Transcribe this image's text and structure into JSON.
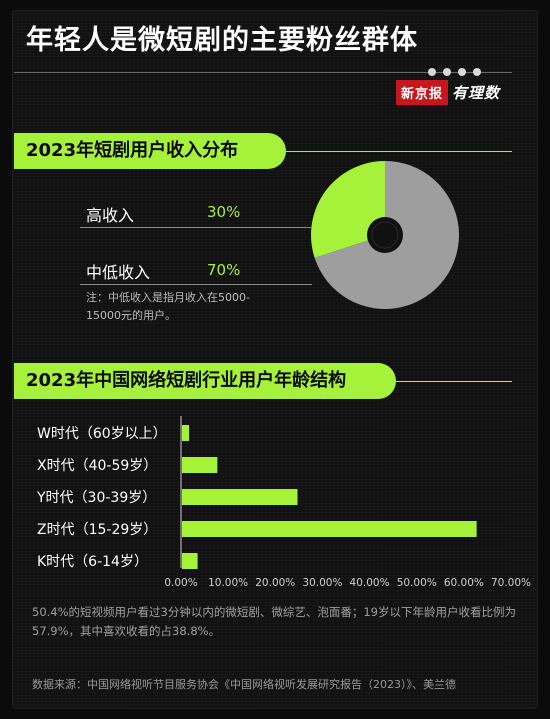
{
  "title": "年轻人是微短剧的主要粉丝群体",
  "brand": {
    "name": "新京报",
    "sub": "有理数"
  },
  "section1": {
    "title": "2023年短剧用户收入分布"
  },
  "section2": {
    "title": "2023年中国网络短剧行业用户年龄结构"
  },
  "note": "注：中低收入是指月收入在5000-15000元的用户。",
  "footnote": "50.4%的短视频用户看过3分钟以内的微短剧、微综艺、泡面番；19岁以下年龄用户收看比例为57.9%，其中喜欢收看的占38.8%。",
  "source": "数据来源：中国网络视听节目服务协会《中国网络视听发展研究报告（2023）》、美兰德",
  "colors": {
    "accent": "#a6f23a",
    "grey": "#9e9e9e"
  },
  "chart_data": [
    {
      "type": "pie",
      "title": "2023年短剧用户收入分布",
      "slices": [
        {
          "label": "高收入",
          "value": 30,
          "display": "30%",
          "color": "#a6f23a"
        },
        {
          "label": "中低收入",
          "value": 70,
          "display": "70%",
          "color": "#9e9e9e"
        }
      ],
      "donut": true
    },
    {
      "type": "bar",
      "orientation": "horizontal",
      "title": "2023年中国网络短剧行业用户年龄结构",
      "categories": [
        "W时代（60岁以上）",
        "X时代（40-59岁）",
        "Y时代（30-39岁）",
        "Z时代（15-29岁）",
        "K时代（6-14岁）"
      ],
      "values": [
        1.5,
        7.5,
        24.5,
        62.5,
        3.3
      ],
      "xlim": [
        0,
        70
      ],
      "xticks": [
        "0.00%",
        "10.00%",
        "20.00%",
        "30.00%",
        "40.00%",
        "50.00%",
        "60.00%",
        "70.00%"
      ],
      "grid": false
    }
  ]
}
